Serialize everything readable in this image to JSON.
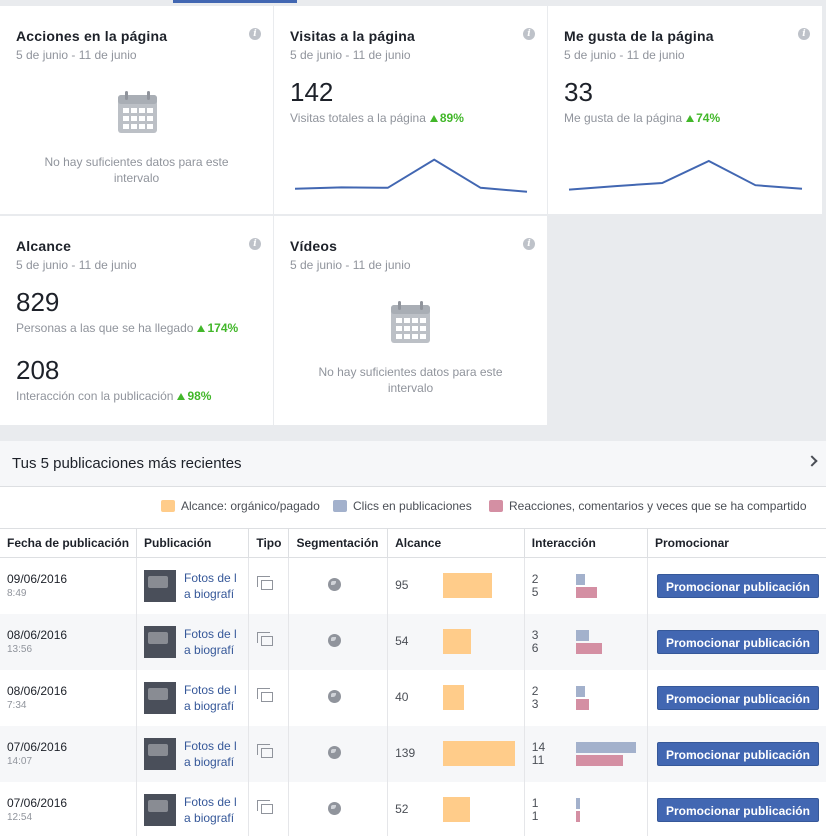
{
  "cards": {
    "acciones": {
      "title": "Acciones en la página",
      "date": "5 de junio - 11 de junio",
      "empty": "No hay suficientes datos para este intervalo"
    },
    "visitas": {
      "title": "Visitas a la página",
      "date": "5 de junio - 11 de junio",
      "value": "142",
      "sub": "Visitas totales a la página",
      "pct": "89%",
      "spark": [
        0.12,
        0.15,
        0.14,
        0.78,
        0.14,
        0.05
      ]
    },
    "megusta": {
      "title": "Me gusta de la página",
      "date": "5 de junio - 11 de junio",
      "value": "33",
      "sub": "Me gusta de la página",
      "pct": "74%",
      "spark": [
        0.1,
        0.18,
        0.25,
        0.75,
        0.2,
        0.12
      ]
    },
    "alcance": {
      "title": "Alcance",
      "date": "5 de junio - 11 de junio",
      "value": "829",
      "sub": "Personas a las que se ha llegado",
      "pct": "174%",
      "value2": "208",
      "sub2": "Interacción con la publicación",
      "pct2": "98%"
    },
    "videos": {
      "title": "Vídeos",
      "date": "5 de junio - 11 de junio",
      "empty": "No hay suficientes datos para este intervalo"
    }
  },
  "posts": {
    "title": "Tus 5 publicaciones más recientes",
    "legend": {
      "reach": "Alcance: orgánico/pagado",
      "clicks": "Clics en publicaciones",
      "reactions": "Reacciones, comentarios y veces que se ha compartido"
    },
    "colors": {
      "reach": "#ffcc8a",
      "clicks": "#a3b1cc",
      "reactions": "#d48fa3",
      "button": "#4267b2"
    },
    "columns": [
      "Fecha de publicación",
      "Publicación",
      "Tipo",
      "Segmentación",
      "Alcance",
      "Interacción",
      "Promocionar"
    ],
    "max_reach": 139,
    "max_interaction": 14,
    "rows": [
      {
        "date": "09/06/2016",
        "time": "8:49",
        "pub1": "Fotos de l",
        "pub2": "a biografí",
        "reach": 95,
        "clicks": 2,
        "reactions": 5,
        "button": "Promocionar publicación"
      },
      {
        "date": "08/06/2016",
        "time": "13:56",
        "pub1": "Fotos de l",
        "pub2": "a biografí",
        "reach": 54,
        "clicks": 3,
        "reactions": 6,
        "button": "Promocionar publicación"
      },
      {
        "date": "08/06/2016",
        "time": "7:34",
        "pub1": "Fotos de l",
        "pub2": "a biografí",
        "reach": 40,
        "clicks": 2,
        "reactions": 3,
        "button": "Promocionar publicación"
      },
      {
        "date": "07/06/2016",
        "time": "14:07",
        "pub1": "Fotos de l",
        "pub2": "a biografí",
        "reach": 139,
        "clicks": 14,
        "reactions": 11,
        "button": "Promocionar publicación"
      },
      {
        "date": "07/06/2016",
        "time": "12:54",
        "pub1": "Fotos de l",
        "pub2": "a biografí",
        "reach": 52,
        "clicks": 1,
        "reactions": 1,
        "button": "Promocionar publicación"
      }
    ]
  }
}
